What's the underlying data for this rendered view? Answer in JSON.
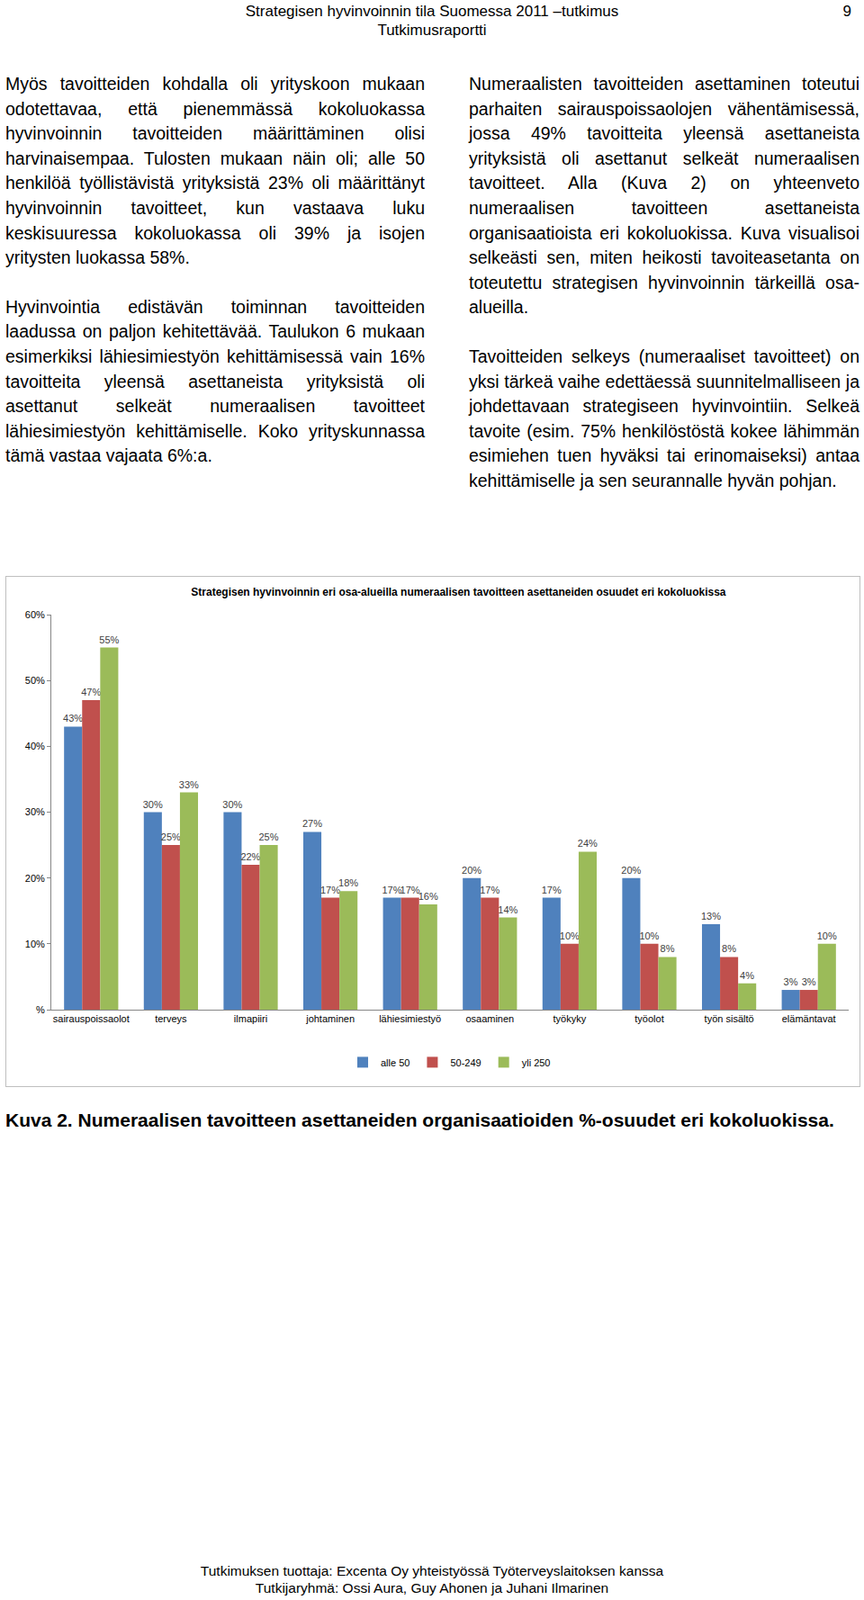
{
  "header": {
    "title": "Strategisen hyvinvoinnin tila Suomessa 2011 –tutkimus",
    "subtitle": "Tutkimusraportti",
    "page": "9"
  },
  "columns": [
    [
      "Myös tavoitteiden kohdalla oli yrityskoon mukaan odotettavaa, että pienemmässä kokoluokassa hyvinvoinnin tavoitteiden määrittäminen olisi harvinaisempaa. Tulosten mukaan näin oli; alle 50 henkilöä työllistävistä yrityksistä 23% oli määrittänyt hyvinvoinnin tavoitteet, kun vastaava luku keskisuuressa kokoluokassa oli 39% ja isojen yritysten luokassa 58%.",
      "Hyvinvointia edistävän toiminnan tavoitteiden laadussa on paljon kehitettävää. Taulukon 6 mukaan esimerkiksi lähiesimiestyön kehittämisessä vain 16% tavoitteita yleensä asettaneista yrityksistä oli asettanut selkeät numeraalisen tavoitteet lähiesimiestyön kehittämiselle. Koko yrityskunnassa tämä vastaa vajaata 6%:a."
    ],
    [
      "Numeraalisten tavoitteiden asettaminen toteutui parhaiten sairauspoissaolojen vähentämisessä, jossa 49% tavoitteita yleensä asettaneista yrityksistä oli asettanut selkeät numeraalisen tavoitteet. Alla (Kuva 2) on yhteenveto numeraalisen tavoitteen asettaneista organisaatioista eri kokoluokissa. Kuva visualisoi selkeästi sen, miten heikosti tavoiteasetanta on toteutettu strategisen hyvinvoinnin tärkeillä osa-alueilla.",
      "Tavoitteiden selkeys (numeraaliset tavoitteet) on yksi tärkeä vaihe edettäessä suunnitelmalliseen ja johdettavaan strategiseen hyvinvointiin. Selkeä tavoite (esim. 75% henkilöstöstä kokee lähimmän esimiehen tuen hyväksi tai erinomaiseksi) antaa kehittämiselle ja sen seurannalle hyvän pohjan."
    ]
  ],
  "chart_data": {
    "type": "bar",
    "title": "Strategisen hyvinvoinnin eri osa-alueilla numeraalisen tavoitteen asettaneiden osuudet eri kokoluokissa",
    "categories": [
      "sairauspoissaolot",
      "terveys",
      "ilmapiiri",
      "johtaminen",
      "lähiesimiestyö",
      "osaaminen",
      "työkyky",
      "työolot",
      "työn sisältö",
      "elämäntavat"
    ],
    "series": [
      {
        "name": "alle 50",
        "color": "#4f81bd",
        "values": [
          43,
          30,
          30,
          27,
          17,
          20,
          17,
          20,
          13,
          3
        ],
        "value_labels": [
          "43%",
          "30%",
          "30%",
          "27%",
          "17%",
          "20%",
          "17%",
          "20%",
          "13%",
          "3%"
        ]
      },
      {
        "name": "50-249",
        "color": "#c0504d",
        "values": [
          47,
          25,
          22,
          17,
          17,
          17,
          10,
          10,
          8,
          3
        ],
        "value_labels": [
          "47%",
          "25%",
          "22%",
          "17%",
          "17%",
          "17%",
          "10%",
          "10%",
          "8%",
          "3%"
        ]
      },
      {
        "name": "yli 250",
        "color": "#9bbb59",
        "values": [
          55,
          33,
          25,
          18,
          16,
          14,
          24,
          8,
          4,
          10
        ],
        "value_labels": [
          "55%",
          "33%",
          "25%",
          "18%",
          "16%",
          "14%",
          "24%",
          "8%",
          "4%",
          "10%"
        ]
      }
    ],
    "ylim": [
      0,
      60
    ],
    "yticks": [
      {
        "value": 0,
        "label": "%"
      },
      {
        "value": 10,
        "label": "10%"
      },
      {
        "value": 20,
        "label": "20%"
      },
      {
        "value": 30,
        "label": "30%"
      },
      {
        "value": 40,
        "label": "40%"
      },
      {
        "value": 50,
        "label": "50%"
      },
      {
        "value": 60,
        "label": "60%"
      }
    ],
    "grid": false,
    "legend": "bottom",
    "data_labels": true
  },
  "caption": "Kuva 2. Numeraalisen tavoitteen asettaneiden organisaatioiden %-osuudet eri kokoluokissa.",
  "footer": [
    "Tutkimuksen tuottaja: Excenta Oy yhteistyössä Työterveyslaitoksen kanssa",
    "Tutkijaryhmä: Ossi Aura, Guy Ahonen ja Juhani Ilmarinen"
  ]
}
